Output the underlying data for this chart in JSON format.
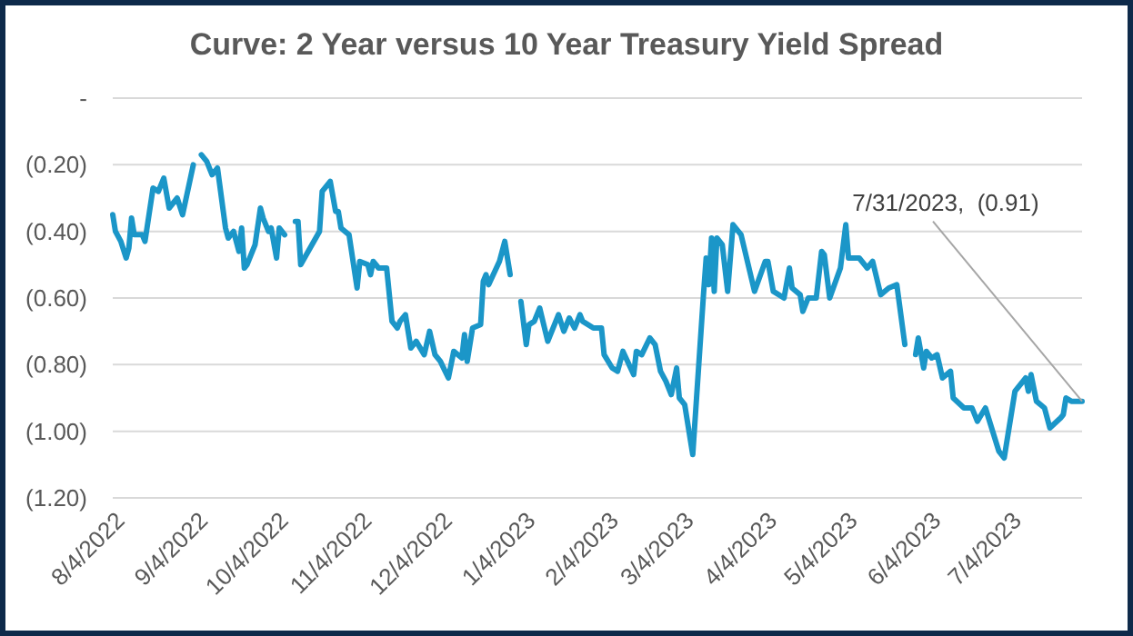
{
  "chart_data": {
    "type": "line",
    "title": "Curve: 2 Year versus 10 Year Treasury Yield Spread",
    "x": [
      "2022-08-04",
      "2022-08-05",
      "2022-08-07",
      "2022-08-09",
      "2022-08-10",
      "2022-08-11",
      "2022-08-12",
      "2022-08-15",
      "2022-08-16",
      "2022-08-19",
      "2022-08-21",
      "2022-08-23",
      "2022-08-25",
      "2022-08-28",
      "2022-08-30",
      "2022-09-03",
      "2022-09-04",
      "2022-09-06",
      "2022-09-08",
      "2022-09-10",
      "2022-09-12",
      "2022-09-15",
      "2022-09-16",
      "2022-09-18",
      "2022-09-20",
      "2022-09-21",
      "2022-09-22",
      "2022-09-23",
      "2022-09-26",
      "2022-09-28",
      "2022-09-29",
      "2022-10-01",
      "2022-10-02",
      "2022-10-04",
      "2022-10-05",
      "2022-10-07",
      "2022-10-09",
      "2022-10-11",
      "2022-10-12",
      "2022-10-13",
      "2022-10-20",
      "2022-10-21",
      "2022-10-24",
      "2022-10-26",
      "2022-10-27",
      "2022-10-28",
      "2022-10-31",
      "2022-11-03",
      "2022-11-04",
      "2022-11-07",
      "2022-11-08",
      "2022-11-09",
      "2022-11-11",
      "2022-11-14",
      "2022-11-16",
      "2022-11-18",
      "2022-11-19",
      "2022-11-21",
      "2022-11-23",
      "2022-11-25",
      "2022-11-28",
      "2022-11-30",
      "2022-12-02",
      "2022-12-04",
      "2022-12-07",
      "2022-12-09",
      "2022-12-12",
      "2022-12-13",
      "2022-12-14",
      "2022-12-16",
      "2022-12-19",
      "2022-12-20",
      "2022-12-21",
      "2022-12-22",
      "2022-12-26",
      "2022-12-28",
      "2022-12-30",
      "2023-01-01",
      "2023-01-03",
      "2023-01-05",
      "2023-01-06",
      "2023-01-08",
      "2023-01-10",
      "2023-01-13",
      "2023-01-17",
      "2023-01-19",
      "2023-01-21",
      "2023-01-23",
      "2023-01-25",
      "2023-01-26",
      "2023-01-30",
      "2023-02-02",
      "2023-02-03",
      "2023-02-06",
      "2023-02-08",
      "2023-02-10",
      "2023-02-14",
      "2023-02-15",
      "2023-02-17",
      "2023-02-20",
      "2023-02-22",
      "2023-02-24",
      "2023-02-26",
      "2023-02-28",
      "2023-03-02",
      "2023-03-03",
      "2023-03-05",
      "2023-03-08",
      "2023-03-12",
      "2023-03-13",
      "2023-03-14",
      "2023-03-15",
      "2023-03-16",
      "2023-03-17",
      "2023-03-19",
      "2023-03-21",
      "2023-03-23",
      "2023-03-26",
      "2023-03-31",
      "2023-04-04",
      "2023-04-05",
      "2023-04-07",
      "2023-04-11",
      "2023-04-13",
      "2023-04-14",
      "2023-04-17",
      "2023-04-18",
      "2023-04-20",
      "2023-04-23",
      "2023-04-25",
      "2023-04-26",
      "2023-04-28",
      "2023-05-02",
      "2023-05-04",
      "2023-05-05",
      "2023-05-09",
      "2023-05-12",
      "2023-05-14",
      "2023-05-17",
      "2023-05-20",
      "2023-05-23",
      "2023-05-26",
      "2023-05-28",
      "2023-05-30",
      "2023-05-31",
      "2023-06-02",
      "2023-06-03",
      "2023-06-05",
      "2023-06-07",
      "2023-06-09",
      "2023-06-12",
      "2023-06-13",
      "2023-06-17",
      "2023-06-20",
      "2023-06-22",
      "2023-06-25",
      "2023-06-30",
      "2023-07-02",
      "2023-07-06",
      "2023-07-10",
      "2023-07-11",
      "2023-07-12",
      "2023-07-14",
      "2023-07-17",
      "2023-07-19",
      "2023-07-23",
      "2023-07-24",
      "2023-07-25",
      "2023-07-27",
      "2023-07-31"
    ],
    "series": [
      {
        "color": "#1b96c8",
        "values": [
          -0.35,
          -0.4,
          -0.43,
          -0.48,
          -0.45,
          -0.36,
          -0.41,
          -0.41,
          -0.43,
          -0.27,
          -0.28,
          -0.24,
          -0.33,
          -0.3,
          -0.35,
          -0.2,
          null,
          -0.17,
          -0.19,
          -0.23,
          -0.21,
          -0.39,
          -0.42,
          -0.4,
          -0.46,
          -0.39,
          -0.51,
          -0.5,
          -0.44,
          -0.33,
          -0.36,
          -0.4,
          -0.39,
          -0.48,
          -0.39,
          -0.41,
          null,
          -0.37,
          -0.37,
          -0.5,
          -0.4,
          -0.28,
          -0.25,
          -0.34,
          -0.34,
          -0.39,
          -0.41,
          -0.57,
          -0.49,
          -0.5,
          -0.53,
          -0.49,
          -0.51,
          -0.51,
          -0.67,
          -0.69,
          -0.67,
          -0.65,
          -0.75,
          -0.73,
          -0.77,
          -0.7,
          -0.77,
          -0.79,
          -0.84,
          -0.76,
          -0.78,
          -0.71,
          -0.79,
          -0.69,
          -0.68,
          -0.55,
          -0.53,
          -0.56,
          -0.49,
          -0.43,
          -0.53,
          null,
          -0.61,
          -0.74,
          -0.68,
          -0.67,
          -0.63,
          -0.73,
          -0.65,
          -0.7,
          -0.66,
          -0.69,
          -0.65,
          -0.67,
          -0.69,
          -0.69,
          -0.77,
          -0.81,
          -0.82,
          -0.76,
          -0.83,
          -0.76,
          -0.77,
          -0.72,
          -0.74,
          -0.82,
          -0.85,
          -0.89,
          -0.81,
          -0.9,
          -0.92,
          -1.07,
          -0.59,
          -0.48,
          -0.56,
          -0.42,
          -0.58,
          -0.42,
          -0.44,
          -0.58,
          -0.38,
          -0.41,
          -0.58,
          -0.49,
          -0.49,
          -0.58,
          -0.6,
          -0.51,
          -0.57,
          -0.59,
          -0.64,
          -0.6,
          -0.6,
          -0.46,
          -0.47,
          -0.6,
          -0.51,
          -0.38,
          -0.48,
          -0.48,
          -0.51,
          -0.49,
          -0.59,
          -0.57,
          -0.56,
          -0.74,
          null,
          -0.77,
          -0.72,
          -0.81,
          -0.76,
          -0.78,
          -0.77,
          -0.84,
          -0.82,
          -0.9,
          -0.93,
          -0.93,
          -0.97,
          -0.93,
          -1.06,
          -1.08,
          -0.88,
          -0.84,
          -0.88,
          -0.83,
          -0.91,
          -0.93,
          -0.99,
          -0.96,
          -0.95,
          -0.9,
          -0.91,
          -0.91
        ]
      }
    ],
    "xlim": [
      "2022-08-04",
      "2023-07-31"
    ],
    "xticks": [
      {
        "value": "2022-08-04",
        "label": "8/4/2022"
      },
      {
        "value": "2022-09-04",
        "label": "9/4/2022"
      },
      {
        "value": "2022-10-04",
        "label": "10/4/2022"
      },
      {
        "value": "2022-11-04",
        "label": "11/4/2022"
      },
      {
        "value": "2022-12-04",
        "label": "12/4/2022"
      },
      {
        "value": "2023-01-04",
        "label": "1/4/2023"
      },
      {
        "value": "2023-02-04",
        "label": "2/4/2023"
      },
      {
        "value": "2023-03-04",
        "label": "3/4/2023"
      },
      {
        "value": "2023-04-04",
        "label": "4/4/2023"
      },
      {
        "value": "2023-05-04",
        "label": "5/4/2023"
      },
      {
        "value": "2023-06-04",
        "label": "6/4/2023"
      },
      {
        "value": "2023-07-04",
        "label": "7/4/2023"
      }
    ],
    "ylim": [
      -1.2,
      0
    ],
    "yticks": [
      {
        "value": 0,
        "label": "-"
      },
      {
        "value": -0.2,
        "label": "(0.20)"
      },
      {
        "value": -0.4,
        "label": "(0.40)"
      },
      {
        "value": -0.6,
        "label": "(0.60)"
      },
      {
        "value": -0.8,
        "label": "(0.80)"
      },
      {
        "value": -1.0,
        "label": "(1.00)"
      },
      {
        "value": -1.2,
        "label": "(1.20)"
      }
    ],
    "grid": "y",
    "marker": "none",
    "line_style": "solid",
    "annotations": [
      {
        "text": "7/31/2023,  (0.91)",
        "x": "2023-07-31",
        "y": -0.91
      }
    ]
  }
}
